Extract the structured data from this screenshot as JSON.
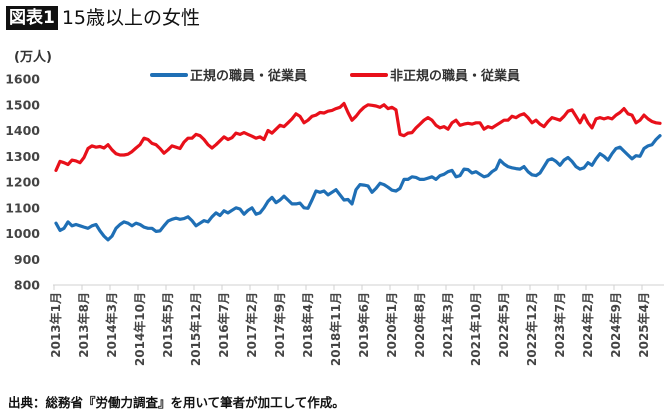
{
  "header": {
    "badge": "図表1",
    "title": "15歳以上の女性"
  },
  "footer": {
    "source": "出典：総務省『労働力調査』を用いて筆者が加工して作成。"
  },
  "chart_data": {
    "type": "line",
    "title": "15歳以上の女性",
    "ylabel": "(万人)",
    "xlabel": "",
    "ylim": [
      800,
      1600
    ],
    "yticks": [
      "800",
      "900",
      "1000",
      "1100",
      "1200",
      "1300",
      "1400",
      "1500",
      "1600"
    ],
    "grid": false,
    "legend_position": "top",
    "x_start": "2013-01",
    "x_end": "2025-08",
    "x_frequency": "monthly",
    "xtick_labels": [
      "2013年1月",
      "2013年8月",
      "2014年3月",
      "2014年10月",
      "2015年5月",
      "2015年12月",
      "2016年7月",
      "2017年2月",
      "2017年9月",
      "2018年4月",
      "2018年11月",
      "2019年6月",
      "2020年1月",
      "2020年8月",
      "2021年3月",
      "2021年10月",
      "2022年5月",
      "2022年12月",
      "2023年7月",
      "2024年2月",
      "2024年9月",
      "2025年4月"
    ],
    "series": [
      {
        "name": "正規の職員・従業員",
        "color": "#1f6fb5",
        "values": [
          1040,
          1012,
          1020,
          1045,
          1030,
          1035,
          1030,
          1025,
          1020,
          1030,
          1035,
          1010,
          990,
          975,
          990,
          1020,
          1035,
          1045,
          1040,
          1030,
          1040,
          1035,
          1025,
          1020,
          1020,
          1008,
          1010,
          1030,
          1048,
          1055,
          1060,
          1055,
          1058,
          1065,
          1050,
          1030,
          1040,
          1050,
          1045,
          1065,
          1080,
          1070,
          1088,
          1080,
          1090,
          1100,
          1095,
          1075,
          1090,
          1100,
          1075,
          1080,
          1100,
          1125,
          1140,
          1120,
          1130,
          1145,
          1130,
          1115,
          1115,
          1118,
          1100,
          1098,
          1130,
          1165,
          1160,
          1165,
          1150,
          1160,
          1170,
          1150,
          1130,
          1132,
          1115,
          1170,
          1190,
          1188,
          1185,
          1160,
          1175,
          1195,
          1190,
          1180,
          1168,
          1165,
          1175,
          1210,
          1210,
          1220,
          1218,
          1210,
          1210,
          1215,
          1220,
          1210,
          1225,
          1230,
          1240,
          1245,
          1220,
          1225,
          1250,
          1248,
          1235,
          1240,
          1230,
          1220,
          1225,
          1240,
          1250,
          1285,
          1270,
          1260,
          1255,
          1252,
          1250,
          1260,
          1240,
          1228,
          1225,
          1235,
          1260,
          1285,
          1290,
          1280,
          1265,
          1285,
          1295,
          1280,
          1260,
          1250,
          1255,
          1275,
          1265,
          1290,
          1310,
          1300,
          1285,
          1310,
          1330,
          1335,
          1320,
          1305,
          1290,
          1302,
          1300,
          1330,
          1340,
          1345,
          1365,
          1380
        ]
      },
      {
        "name": "非正規の職員・従業員",
        "color": "#e8101a",
        "values": [
          1245,
          1280,
          1275,
          1268,
          1285,
          1282,
          1275,
          1295,
          1330,
          1340,
          1335,
          1338,
          1332,
          1345,
          1325,
          1310,
          1305,
          1305,
          1308,
          1318,
          1332,
          1345,
          1370,
          1365,
          1350,
          1345,
          1330,
          1312,
          1325,
          1340,
          1335,
          1330,
          1355,
          1370,
          1370,
          1385,
          1380,
          1365,
          1345,
          1332,
          1345,
          1360,
          1375,
          1365,
          1372,
          1390,
          1385,
          1392,
          1385,
          1378,
          1370,
          1375,
          1365,
          1400,
          1390,
          1405,
          1420,
          1415,
          1430,
          1445,
          1465,
          1455,
          1430,
          1440,
          1455,
          1460,
          1470,
          1468,
          1475,
          1478,
          1485,
          1490,
          1505,
          1470,
          1440,
          1455,
          1475,
          1490,
          1500,
          1498,
          1495,
          1490,
          1500,
          1485,
          1490,
          1480,
          1385,
          1380,
          1390,
          1392,
          1410,
          1425,
          1440,
          1450,
          1440,
          1420,
          1410,
          1415,
          1405,
          1430,
          1440,
          1420,
          1425,
          1428,
          1425,
          1430,
          1430,
          1405,
          1415,
          1410,
          1420,
          1430,
          1440,
          1440,
          1455,
          1450,
          1460,
          1465,
          1450,
          1430,
          1440,
          1425,
          1415,
          1435,
          1450,
          1445,
          1440,
          1455,
          1475,
          1480,
          1455,
          1430,
          1460,
          1430,
          1410,
          1445,
          1450,
          1445,
          1450,
          1445,
          1460,
          1470,
          1485,
          1465,
          1460,
          1430,
          1440,
          1460,
          1445,
          1435,
          1430,
          1428
        ]
      }
    ]
  }
}
